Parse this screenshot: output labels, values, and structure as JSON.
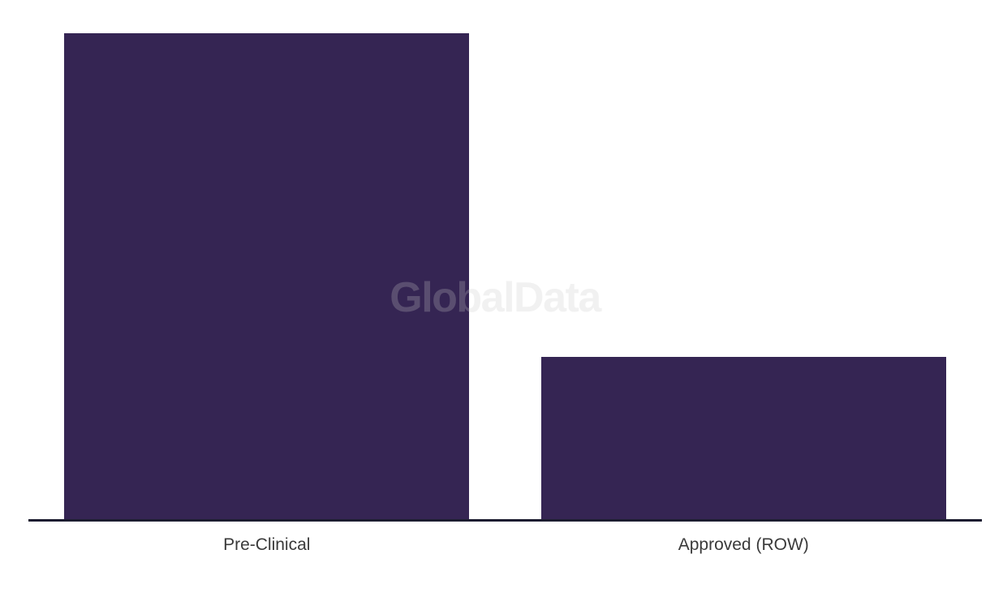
{
  "chart_data": {
    "type": "bar",
    "categories": [
      "Pre-Clinical",
      "Approved (ROW)"
    ],
    "values": [
      3,
      1
    ],
    "title": "",
    "xlabel": "",
    "ylabel": "",
    "ylim": [
      0,
      3
    ],
    "grid": false,
    "legend": false,
    "bar_color": "#352553",
    "axis_line_color": "#1c1c30",
    "label_color": "#3a3a3a"
  },
  "watermark": {
    "text": "GlobalData",
    "color": "#c8c8c8"
  }
}
